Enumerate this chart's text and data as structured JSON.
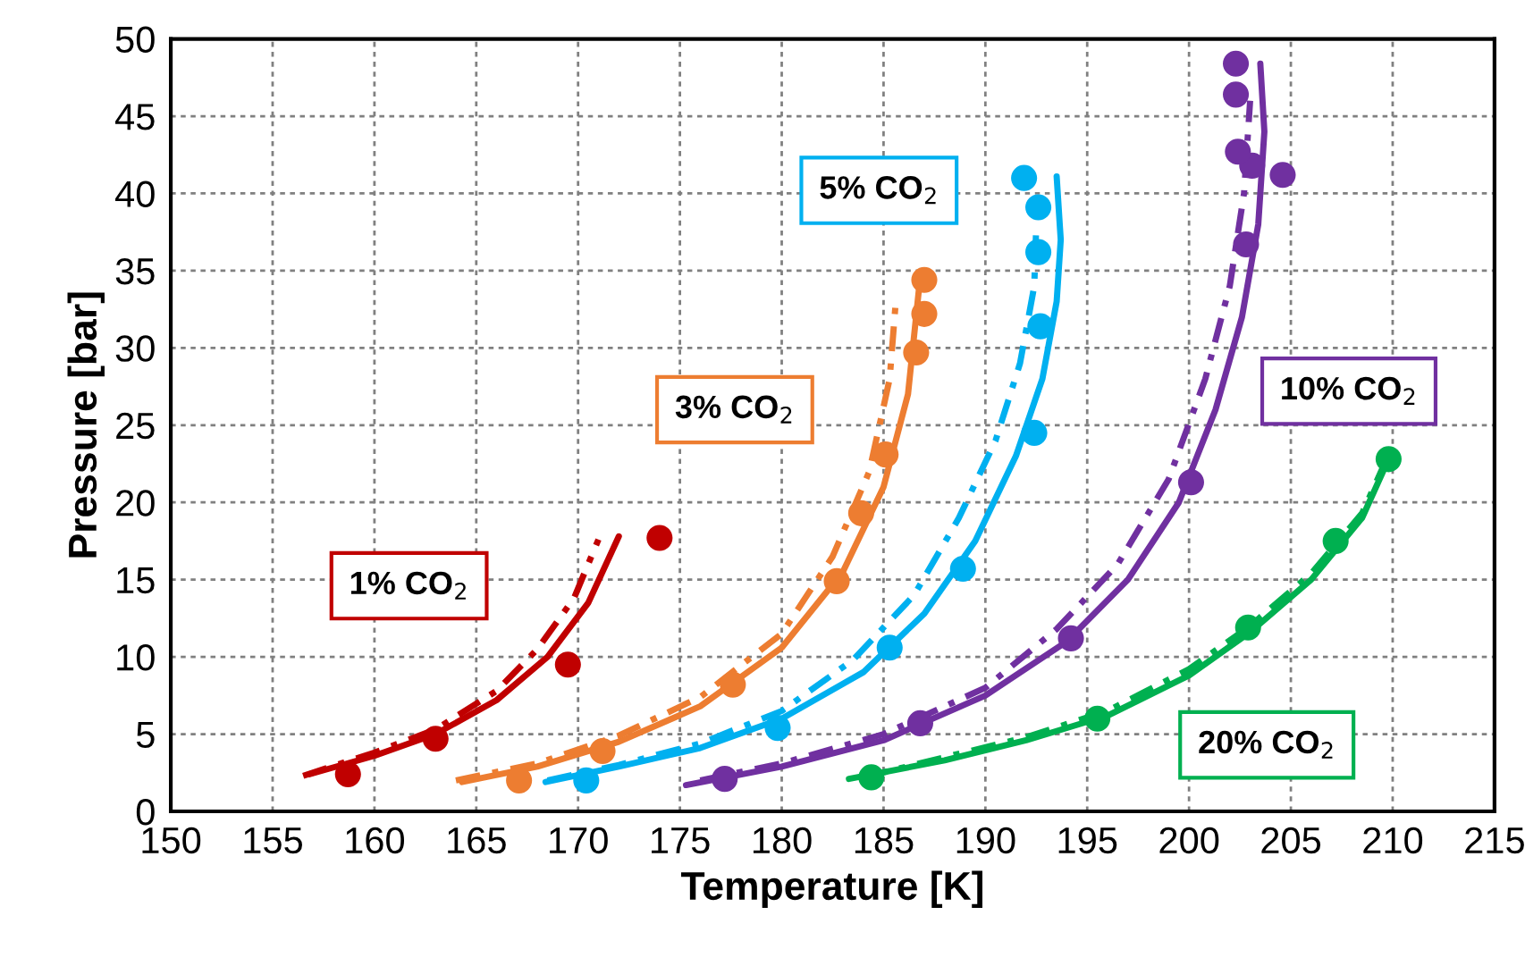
{
  "chart_data": {
    "type": "scatter",
    "xlabel": "Temperature [K]",
    "ylabel": "Pressure [bar]",
    "xlim": [
      150,
      215
    ],
    "xticks": [
      150,
      155,
      160,
      165,
      170,
      175,
      180,
      185,
      190,
      195,
      200,
      205,
      210,
      215
    ],
    "ylim": [
      0,
      50
    ],
    "yticks": [
      0,
      5,
      10,
      15,
      20,
      25,
      30,
      35,
      40,
      45,
      50
    ],
    "grid": true,
    "legend": false,
    "series": [
      {
        "marker": "circle",
        "color": "#c00000",
        "x": [
          158.7,
          163.0,
          169.5,
          174.0
        ],
        "values": [
          2.4,
          4.7,
          9.5,
          17.7
        ]
      },
      {
        "marker": "circle",
        "color": "#ed7d31",
        "x": [
          167.1,
          171.2,
          177.6,
          182.7,
          183.9,
          185.1,
          186.6,
          187.0,
          187.0
        ],
        "values": [
          2.0,
          3.9,
          8.2,
          14.9,
          19.3,
          23.1,
          29.7,
          32.2,
          34.4
        ]
      },
      {
        "marker": "circle",
        "color": "#00b0f0",
        "x": [
          170.4,
          179.8,
          185.3,
          188.9,
          192.4,
          192.7,
          192.6,
          192.6,
          191.9
        ],
        "values": [
          2.0,
          5.4,
          10.6,
          15.7,
          24.5,
          31.4,
          36.2,
          39.1,
          41.0
        ]
      },
      {
        "marker": "circle",
        "color": "#7030a0",
        "x": [
          177.2,
          186.8,
          194.2,
          200.1,
          202.8,
          204.6,
          203.1,
          202.4,
          202.3,
          202.3
        ],
        "values": [
          2.1,
          5.7,
          11.2,
          21.3,
          36.7,
          41.2,
          41.8,
          42.7,
          46.4,
          48.4
        ]
      },
      {
        "marker": "circle",
        "color": "#00b050",
        "x": [
          184.4,
          195.5,
          202.9,
          207.2,
          209.8
        ],
        "values": [
          2.2,
          6.0,
          11.9,
          17.5,
          22.8
        ]
      },
      {
        "type": "line",
        "line_style": "solid",
        "marker": "none",
        "color": "#c00000",
        "x": [
          156.8,
          160,
          163,
          166,
          168.5,
          170.5,
          172
        ],
        "values": [
          2.4,
          3.6,
          5.0,
          7.2,
          10.0,
          13.5,
          17.8
        ]
      },
      {
        "type": "line",
        "line_style": "dashed",
        "marker": "none",
        "color": "#c00000",
        "x": [
          156.5,
          160,
          163,
          166,
          168,
          169.8,
          171
        ],
        "values": [
          2.3,
          3.8,
          5.3,
          7.8,
          10.5,
          13.8,
          17.6
        ]
      },
      {
        "type": "line",
        "line_style": "solid",
        "marker": "none",
        "color": "#ed7d31",
        "x": [
          164.3,
          168,
          172,
          176,
          180,
          183,
          185,
          186.2,
          186.8
        ],
        "values": [
          1.9,
          2.9,
          4.5,
          6.8,
          10.6,
          15.5,
          21,
          27,
          34.6
        ]
      },
      {
        "type": "line",
        "line_style": "dashed",
        "marker": "none",
        "color": "#ed7d31",
        "x": [
          164,
          168,
          172,
          176,
          180,
          182.5,
          184.3,
          185.3,
          185.6
        ],
        "values": [
          2,
          3.1,
          4.9,
          7.4,
          11.5,
          16.5,
          22,
          28,
          33
        ]
      },
      {
        "type": "line",
        "line_style": "solid",
        "marker": "none",
        "color": "#00b0f0",
        "x": [
          168.4,
          172,
          176,
          180,
          184,
          187,
          189.5,
          191.5,
          192.8,
          193.5,
          193.7,
          193.5
        ],
        "values": [
          1.9,
          2.9,
          4.1,
          6.0,
          9.0,
          12.8,
          17.5,
          23,
          28,
          33,
          37,
          41.1
        ]
      },
      {
        "type": "line",
        "line_style": "dashed",
        "marker": "none",
        "color": "#00b0f0",
        "x": [
          168.5,
          172,
          176,
          180,
          183.5,
          186.5,
          188.7,
          190.5,
          191.7,
          192.4,
          192.5
        ],
        "values": [
          2,
          3,
          4.4,
          6.5,
          9.8,
          14,
          19,
          24,
          29,
          34,
          38
        ]
      },
      {
        "type": "line",
        "line_style": "solid",
        "marker": "none",
        "color": "#7030a0",
        "x": [
          175.3,
          180,
          185,
          190,
          194,
          197,
          199.5,
          201.3,
          202.6,
          203.4,
          203.7,
          203.5
        ],
        "values": [
          1.7,
          2.9,
          4.6,
          7.5,
          11,
          15,
          20,
          26,
          32,
          38,
          44,
          48.4
        ]
      },
      {
        "type": "line",
        "line_style": "dashed",
        "marker": "none",
        "color": "#7030a0",
        "x": [
          176,
          180,
          185,
          190,
          193.5,
          196.5,
          199,
          200.8,
          202,
          202.7,
          203
        ],
        "values": [
          2,
          3.1,
          5,
          8,
          11.8,
          16,
          21.5,
          28,
          34,
          40,
          46
        ]
      },
      {
        "type": "line",
        "line_style": "solid",
        "marker": "none",
        "color": "#00b050",
        "x": [
          183.3,
          188,
          192,
          196,
          200,
          203,
          206,
          208.5,
          209.8
        ],
        "values": [
          2.1,
          3.3,
          4.6,
          6.2,
          8.8,
          11.6,
          15,
          19,
          22.8
        ]
      },
      {
        "type": "line",
        "line_style": "dashed",
        "marker": "none",
        "color": "#00b050",
        "x": [
          184,
          188,
          192,
          196,
          200,
          203,
          206,
          208.5,
          209.6
        ],
        "values": [
          2.2,
          3.5,
          4.8,
          6.5,
          9.2,
          12,
          15.4,
          19.3,
          22.5
        ]
      }
    ],
    "annotations": [
      "1% CO$_{2}$",
      "3% CO$_{2}$",
      "5% CO$_{2}$",
      "10% CO$_{2}$",
      "20% CO$_{2}$"
    ]
  }
}
